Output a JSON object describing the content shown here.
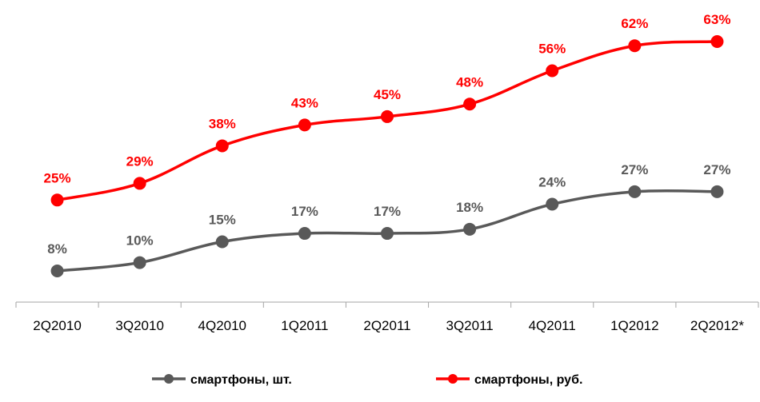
{
  "chart_data": {
    "type": "line",
    "categories": [
      "2Q2010",
      "3Q2010",
      "4Q2010",
      "1Q2011",
      "2Q2011",
      "3Q2011",
      "4Q2011",
      "1Q2012",
      "2Q2012*"
    ],
    "series": [
      {
        "name": "смартфоны, шт.",
        "color": "#595959",
        "values": [
          8,
          10,
          15,
          17,
          17,
          18,
          24,
          27,
          27
        ],
        "labels": [
          "8%",
          "10%",
          "15%",
          "17%",
          "17%",
          "18%",
          "24%",
          "27%",
          "27%"
        ]
      },
      {
        "name": "смартфоны, руб.",
        "color": "#ff0000",
        "values": [
          25,
          29,
          38,
          43,
          45,
          48,
          56,
          62,
          63
        ],
        "labels": [
          "25%",
          "29%",
          "38%",
          "43%",
          "45%",
          "48%",
          "56%",
          "62%",
          "63%"
        ]
      }
    ],
    "title": "",
    "xlabel": "",
    "ylabel": "",
    "ylim": [
      -0.1,
      69
    ],
    "grid": false,
    "legend_position": "bottom"
  }
}
